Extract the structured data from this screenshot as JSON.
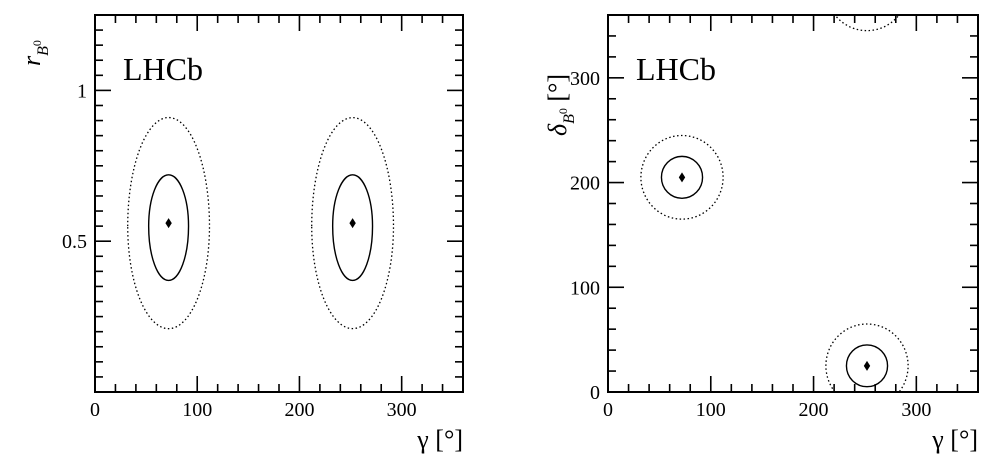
{
  "chart_data": [
    {
      "type": "scatter",
      "label": "LHCb",
      "xlabel": "γ [°]",
      "ylabel": "rB0",
      "xlim": [
        0,
        360
      ],
      "ylim": [
        0,
        1.25
      ],
      "xticks": [
        0,
        100,
        200,
        300
      ],
      "yticks": [
        0.5,
        1
      ],
      "minima": [
        {
          "x": 72,
          "y": 0.56
        },
        {
          "x": 252,
          "y": 0.56
        }
      ],
      "contours": [
        {
          "style": "solid",
          "regions": [
            {
              "cx": 72,
              "cy": 0.55,
              "x_min": 53,
              "x_max": 92,
              "y_min": 0.37,
              "y_max": 0.72
            },
            {
              "cx": 252,
              "cy": 0.55,
              "x_min": 233,
              "x_max": 272,
              "y_min": 0.37,
              "y_max": 0.72
            }
          ]
        },
        {
          "style": "dotted",
          "regions": [
            {
              "cx": 72,
              "cy": 0.55,
              "x_min": 32,
              "x_max": 112,
              "y_min": 0.21,
              "y_max": 0.91
            },
            {
              "cx": 252,
              "cy": 0.55,
              "x_min": 212,
              "x_max": 292,
              "y_min": 0.21,
              "y_max": 0.91
            }
          ]
        }
      ]
    },
    {
      "type": "scatter",
      "label": "LHCb",
      "xlabel": "γ [°]",
      "ylabel": "δB0 [°]",
      "xlim": [
        0,
        360
      ],
      "ylim": [
        0,
        360
      ],
      "xticks": [
        0,
        100,
        200,
        300
      ],
      "yticks": [
        0,
        100,
        200,
        300
      ],
      "minima": [
        {
          "x": 72,
          "y": 205
        },
        {
          "x": 252,
          "y": 25
        }
      ],
      "contours": [
        {
          "style": "solid",
          "regions": [
            {
              "cx": 72,
              "cy": 205,
              "x_min": 52,
              "x_max": 92,
              "y_min": 185,
              "y_max": 225
            },
            {
              "cx": 252,
              "cy": 25,
              "x_min": 232,
              "x_max": 272,
              "y_min": 5,
              "y_max": 45
            }
          ]
        },
        {
          "style": "dotted",
          "regions": [
            {
              "cx": 72,
              "cy": 205,
              "x_min": 32,
              "x_max": 112,
              "y_min": 165,
              "y_max": 245
            },
            {
              "cx": 252,
              "cy": 25,
              "x_min": 212,
              "x_max": 292,
              "y_min": -15,
              "y_max": 65
            },
            {
              "cx": 252,
              "cy": 385,
              "x_min": 212,
              "x_max": 292,
              "y_min": 345,
              "y_max": 425
            }
          ]
        }
      ]
    }
  ]
}
